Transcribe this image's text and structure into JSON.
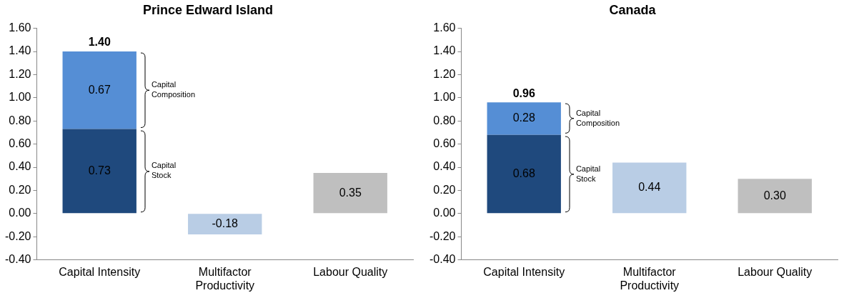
{
  "chart_data": [
    {
      "type": "bar",
      "title": "Prince Edward Island",
      "categories": [
        "Capital Intensity",
        "Multifactor Productivity",
        "Labour Quality"
      ],
      "stacked": true,
      "series": [
        {
          "name": "Capital Stock",
          "color": "#1f497d",
          "values": [
            0.73,
            null,
            null
          ],
          "value_labels": [
            "0.73",
            null,
            null
          ]
        },
        {
          "name": "Capital Composition",
          "color": "#558ed5",
          "values": [
            0.67,
            null,
            null
          ],
          "value_labels": [
            "0.67",
            null,
            null
          ]
        },
        {
          "color": "#b9cde5",
          "values": [
            null,
            -0.18,
            null
          ],
          "value_labels": [
            null,
            "-0.18",
            null
          ]
        },
        {
          "color": "#bfbfbf",
          "values": [
            null,
            null,
            0.35
          ],
          "value_labels": [
            null,
            null,
            "0.35"
          ]
        }
      ],
      "totals": [
        "1.40",
        null,
        null
      ],
      "ylim": [
        -0.4,
        1.6
      ],
      "yticks": [
        {
          "value": -0.4,
          "label": "-0.40"
        },
        {
          "value": -0.2,
          "label": "-0.20"
        },
        {
          "value": 0,
          "label": "0.00"
        },
        {
          "value": 0.2,
          "label": "0.20"
        },
        {
          "value": 0.4,
          "label": "0.40"
        },
        {
          "value": 0.6,
          "label": "0.60"
        },
        {
          "value": 0.8,
          "label": "0.80"
        },
        {
          "value": 1,
          "label": "1.00"
        },
        {
          "value": 1.2,
          "label": "1.20"
        },
        {
          "value": 1.4,
          "label": "1.40"
        },
        {
          "value": 1.6,
          "label": "1.60"
        }
      ],
      "grid": false,
      "legend": false
    },
    {
      "type": "bar",
      "title": "Canada",
      "categories": [
        "Capital Intensity",
        "Multifactor Productivity",
        "Labour Quality"
      ],
      "stacked": true,
      "series": [
        {
          "name": "Capital Stock",
          "color": "#1f497d",
          "values": [
            0.68,
            null,
            null
          ],
          "value_labels": [
            "0.68",
            null,
            null
          ]
        },
        {
          "name": "Capital Composition",
          "color": "#558ed5",
          "values": [
            0.28,
            null,
            null
          ],
          "value_labels": [
            "0.28",
            null,
            null
          ]
        },
        {
          "color": "#b9cde5",
          "values": [
            null,
            0.44,
            null
          ],
          "value_labels": [
            null,
            "0.44",
            null
          ]
        },
        {
          "color": "#bfbfbf",
          "values": [
            null,
            null,
            0.3
          ],
          "value_labels": [
            null,
            null,
            "0.30"
          ]
        }
      ],
      "totals": [
        "0.96",
        null,
        null
      ],
      "ylim": [
        -0.4,
        1.6
      ],
      "yticks": [
        {
          "value": -0.4,
          "label": "-0.40"
        },
        {
          "value": -0.2,
          "label": "-0.20"
        },
        {
          "value": 0,
          "label": "0.00"
        },
        {
          "value": 0.2,
          "label": "0.20"
        },
        {
          "value": 0.4,
          "label": "0.40"
        },
        {
          "value": 0.6,
          "label": "0.60"
        },
        {
          "value": 0.8,
          "label": "0.80"
        },
        {
          "value": 1,
          "label": "1.00"
        },
        {
          "value": 1.2,
          "label": "1.20"
        },
        {
          "value": 1.4,
          "label": "1.40"
        },
        {
          "value": 1.6,
          "label": "1.60"
        }
      ],
      "grid": false,
      "legend": false
    }
  ]
}
